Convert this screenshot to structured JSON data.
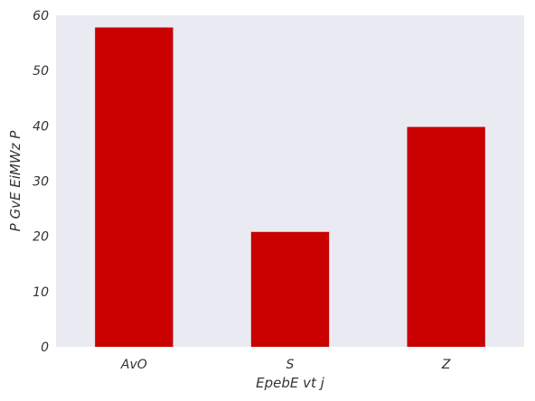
{
  "chart_data": {
    "type": "bar",
    "categories": [
      "AvO",
      "S",
      "Z"
    ],
    "values": [
      57.8,
      20.8,
      39.8
    ],
    "xlabel": "EpebE  vt j",
    "ylabel": "P  GvE EiMWz P",
    "ylim": [
      0,
      60
    ],
    "yticks": [
      0,
      10,
      20,
      30,
      40,
      50,
      60
    ],
    "grid": false,
    "bar_color": "#c80000",
    "plot_background": "#eaeaf2"
  }
}
